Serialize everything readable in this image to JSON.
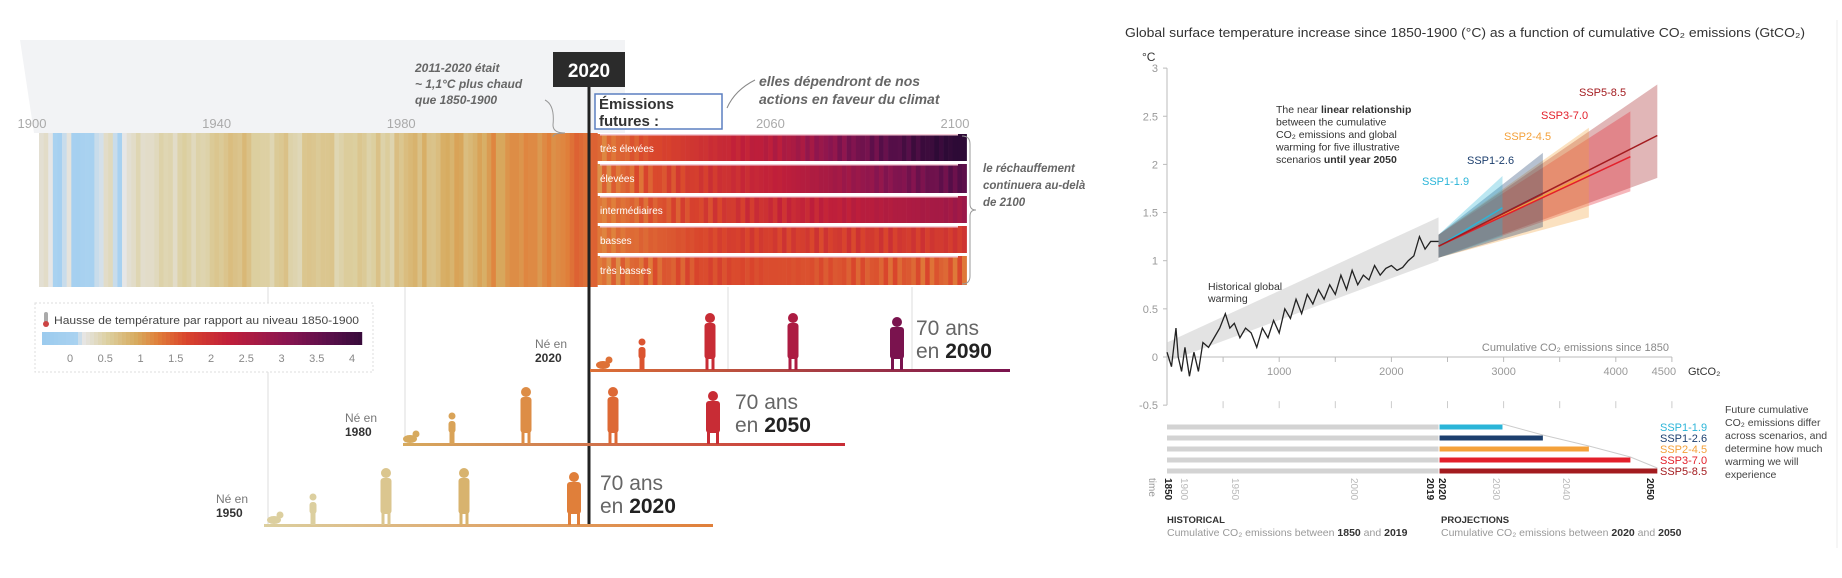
{
  "left": {
    "axis_years": [
      "1900",
      "1940",
      "1980",
      "2020",
      "2060",
      "2100"
    ],
    "now_label": "2020",
    "note_2011": [
      "2011-2020 était",
      "~ 1,1°C plus chaud",
      "que 1850-1900"
    ],
    "future_box": [
      "Émissions",
      "futures :"
    ],
    "future_note": [
      "elles dépendront de nos",
      "actions en faveur du climat"
    ],
    "beyond_note": [
      "le réchauffement",
      "continuera au-delà",
      "de 2100"
    ],
    "legend": {
      "title": "Hausse de température par rapport au niveau 1850-1900",
      "icon": "thermometer-icon",
      "ticks": [
        "0",
        "0.5",
        "1",
        "1.5",
        "2",
        "2.5",
        "3",
        "3.5",
        "4"
      ],
      "range": [
        -0.4,
        4.2
      ]
    },
    "colormap": [
      [
        -0.4,
        "#9ccbee"
      ],
      [
        0.05,
        "#a9d2f0"
      ],
      [
        0.15,
        "#e6e6e6"
      ],
      [
        0.5,
        "#dccf9f"
      ],
      [
        0.9,
        "#d7aa5e"
      ],
      [
        1.2,
        "#e07f3a"
      ],
      [
        1.6,
        "#d9452c"
      ],
      [
        2.2,
        "#c01f3a"
      ],
      [
        3.0,
        "#8a1550"
      ],
      [
        3.6,
        "#5a0f4a"
      ],
      [
        4.2,
        "#2d0a36"
      ]
    ],
    "historical": {
      "start_year": 1900,
      "anomalies": [
        0.25,
        0.3,
        0.15,
        0.05,
        -0.05,
        0.1,
        0.2,
        -0.05,
        -0.1,
        0.0,
        0.05,
        0.0,
        0.1,
        0.12,
        0.3,
        0.35,
        0.1,
        0.0,
        0.15,
        0.25,
        0.3,
        0.4,
        0.28,
        0.3,
        0.3,
        0.35,
        0.45,
        0.4,
        0.42,
        0.3,
        0.45,
        0.5,
        0.45,
        0.35,
        0.45,
        0.42,
        0.45,
        0.55,
        0.6,
        0.55,
        0.62,
        0.7,
        0.65,
        0.62,
        0.75,
        0.65,
        0.5,
        0.5,
        0.48,
        0.48,
        0.4,
        0.55,
        0.58,
        0.65,
        0.45,
        0.42,
        0.38,
        0.6,
        0.62,
        0.6,
        0.55,
        0.6,
        0.6,
        0.62,
        0.4,
        0.45,
        0.52,
        0.52,
        0.5,
        0.6,
        0.55,
        0.45,
        0.5,
        0.65,
        0.45,
        0.52,
        0.42,
        0.68,
        0.6,
        0.7,
        0.75,
        0.8,
        0.65,
        0.85,
        0.65,
        0.63,
        0.7,
        0.85,
        0.88,
        0.8,
        0.95,
        0.92,
        0.7,
        0.75,
        0.82,
        0.95,
        0.85,
        1.0,
        1.15,
        0.92,
        0.92,
        1.05,
        1.1,
        1.1,
        1.05,
        1.15,
        1.12,
        1.12,
        1.02,
        1.12,
        1.2,
        1.08,
        1.12,
        1.15,
        1.2,
        1.3,
        1.4,
        1.35,
        1.3,
        1.38,
        1.4
      ]
    },
    "scenarios": [
      {
        "label": "très élevées",
        "path": [
          [
            2020,
            1.2
          ],
          [
            2060,
            2.4
          ],
          [
            2100,
            4.4
          ]
        ]
      },
      {
        "label": "élevées",
        "path": [
          [
            2020,
            1.2
          ],
          [
            2060,
            2.2
          ],
          [
            2100,
            3.6
          ]
        ]
      },
      {
        "label": "intermédiaires",
        "path": [
          [
            2020,
            1.2
          ],
          [
            2060,
            2.0
          ],
          [
            2100,
            2.7
          ]
        ]
      },
      {
        "label": "basses",
        "path": [
          [
            2020,
            1.2
          ],
          [
            2050,
            1.7
          ],
          [
            2100,
            1.8
          ]
        ]
      },
      {
        "label": "très basses",
        "path": [
          [
            2020,
            1.2
          ],
          [
            2045,
            1.6
          ],
          [
            2100,
            1.4
          ]
        ]
      }
    ],
    "generations": [
      {
        "born_label": [
          "Né en",
          "2020"
        ],
        "age_label": [
          "70 ans",
          "en 2090"
        ],
        "figures": [
          {
            "kind": "baby",
            "t": 1.3
          },
          {
            "kind": "child",
            "t": 1.5
          },
          {
            "kind": "adult",
            "t": 2.0
          },
          {
            "kind": "adult",
            "t": 2.5
          },
          {
            "kind": "elder",
            "t": 3.2
          }
        ]
      },
      {
        "born_label": [
          "Né en",
          "1980"
        ],
        "age_label": [
          "70 ans",
          "en 2050"
        ],
        "figures": [
          {
            "kind": "baby",
            "t": 0.9
          },
          {
            "kind": "child",
            "t": 0.95
          },
          {
            "kind": "adult",
            "t": 1.1
          },
          {
            "kind": "adult",
            "t": 1.35
          },
          {
            "kind": "elder",
            "t": 2.0
          }
        ]
      },
      {
        "born_label": [
          "Né en",
          "1950"
        ],
        "age_label": [
          "70 ans",
          "en 2020"
        ],
        "figures": [
          {
            "kind": "baby",
            "t": 0.5
          },
          {
            "kind": "child",
            "t": 0.5
          },
          {
            "kind": "adult",
            "t": 0.6
          },
          {
            "kind": "adult",
            "t": 0.8
          },
          {
            "kind": "elder",
            "t": 1.2
          }
        ]
      }
    ]
  },
  "chart_data": [
    {
      "type": "area",
      "title": "Global surface temperature increase since 1850-1900 (°C) as a function of cumulative CO₂ emissions (GtCO₂)",
      "ylabel": "°C",
      "xlabel": "Cumulative CO₂ emissions since 1850",
      "x_unit": "GtCO₂",
      "xlim": [
        0,
        4500
      ],
      "ylim": [
        -0.5,
        3
      ],
      "x_ticks": [
        "1000",
        "2000",
        "3000",
        "4000",
        "4500"
      ],
      "y_ticks": [
        "-0.5",
        "0",
        "0.5",
        "1",
        "1.5",
        "2",
        "2.5",
        "3"
      ],
      "grid": false,
      "annotation_lines": [
        [
          {
            "t": "The near ",
            "b": false
          },
          {
            "t": "linear relationship",
            "b": true
          }
        ],
        [
          {
            "t": "between the cumulative",
            "b": false
          }
        ],
        [
          {
            "t": "CO₂ emissions and global",
            "b": false
          }
        ],
        [
          {
            "t": "warming for five illustrative",
            "b": false
          }
        ],
        [
          {
            "t": "scenarios ",
            "b": false
          },
          {
            "t": "until year 2050",
            "b": true
          }
        ]
      ],
      "historical_label": [
        "Historical global",
        "warming"
      ],
      "historical": [
        [
          0,
          0.05
        ],
        [
          40,
          -0.1
        ],
        [
          80,
          0.3
        ],
        [
          100,
          0.0
        ],
        [
          130,
          -0.15
        ],
        [
          160,
          0.1
        ],
        [
          200,
          -0.2
        ],
        [
          240,
          0.05
        ],
        [
          280,
          -0.15
        ],
        [
          320,
          0.15
        ],
        [
          370,
          0.1
        ],
        [
          420,
          0.2
        ],
        [
          470,
          0.3
        ],
        [
          520,
          0.45
        ],
        [
          560,
          0.3
        ],
        [
          600,
          0.35
        ],
        [
          650,
          0.2
        ],
        [
          700,
          0.3
        ],
        [
          750,
          0.25
        ],
        [
          800,
          0.1
        ],
        [
          850,
          0.3
        ],
        [
          900,
          0.2
        ],
        [
          950,
          0.38
        ],
        [
          1000,
          0.25
        ],
        [
          1050,
          0.5
        ],
        [
          1100,
          0.4
        ],
        [
          1150,
          0.6
        ],
        [
          1200,
          0.45
        ],
        [
          1250,
          0.65
        ],
        [
          1300,
          0.55
        ],
        [
          1350,
          0.7
        ],
        [
          1400,
          0.6
        ],
        [
          1450,
          0.75
        ],
        [
          1500,
          0.65
        ],
        [
          1550,
          0.85
        ],
        [
          1600,
          0.7
        ],
        [
          1650,
          0.9
        ],
        [
          1700,
          0.75
        ],
        [
          1750,
          0.85
        ],
        [
          1800,
          0.8
        ],
        [
          1850,
          0.95
        ],
        [
          1900,
          0.85
        ],
        [
          1950,
          0.92
        ],
        [
          2000,
          0.95
        ],
        [
          2050,
          0.9
        ],
        [
          2100,
          0.93
        ],
        [
          2150,
          1.0
        ],
        [
          2200,
          1.05
        ],
        [
          2250,
          1.25
        ],
        [
          2300,
          1.12
        ],
        [
          2350,
          1.2
        ],
        [
          2420,
          1.2
        ]
      ],
      "historical_band": {
        "start": [
          0,
          -0.05,
          0.15
        ],
        "end": [
          2420,
          1.0,
          1.45
        ]
      },
      "projection_start": [
        2420,
        1.15
      ],
      "series": [
        {
          "name": "SSP1-1.9",
          "color": "#2bb5d8",
          "end_emissions": 2990,
          "central": 1.55,
          "low": 1.25,
          "high": 1.88
        },
        {
          "name": "SSP1-2.6",
          "color": "#1d3f6e",
          "end_emissions": 3350,
          "central": 1.7,
          "low": 1.35,
          "high": 2.12
        },
        {
          "name": "SSP2-4.5",
          "color": "#f4a13a",
          "end_emissions": 3760,
          "central": 1.9,
          "low": 1.45,
          "high": 2.38
        },
        {
          "name": "SSP3-7.0",
          "color": "#e3202b",
          "end_emissions": 4130,
          "central": 2.08,
          "low": 1.72,
          "high": 2.55
        },
        {
          "name": "SSP5-8.5",
          "color": "#a31b1f",
          "end_emissions": 4370,
          "central": 2.3,
          "low": 1.86,
          "high": 2.83
        }
      ]
    },
    {
      "type": "bar",
      "categories": [
        "SSP1-1.9",
        "SSP1-2.6",
        "SSP2-4.5",
        "SSP3-7.0",
        "SSP5-8.5"
      ],
      "historical_emissions_2019": 2420,
      "values_2050": [
        2990,
        3350,
        3760,
        4130,
        4370
      ],
      "time_axis_label": "time",
      "time_ticks": [
        {
          "label": "1850",
          "bold": true
        },
        {
          "label": "1900"
        },
        {
          "label": "1950"
        },
        {
          "label": "2000"
        },
        {
          "label": "2019",
          "bold": true
        },
        {
          "label": "2020",
          "bold": true
        },
        {
          "label": "2030"
        },
        {
          "label": "2040"
        },
        {
          "label": "2050",
          "bold": true
        }
      ],
      "side_note": [
        "Future cumulative",
        "CO₂ emissions differ",
        "across scenarios, and",
        "determine how much",
        "warming we will",
        "experience"
      ],
      "historical_caption": {
        "head": "HISTORICAL",
        "pre": "Cumulative CO₂ emissions between ",
        "a": "1850",
        "mid": " and ",
        "b": "2019"
      },
      "projection_caption": {
        "head": "PROJECTIONS",
        "pre": "Cumulative CO₂ emissions between ",
        "a": "2020",
        "mid": " and ",
        "b": "2050"
      }
    }
  ]
}
